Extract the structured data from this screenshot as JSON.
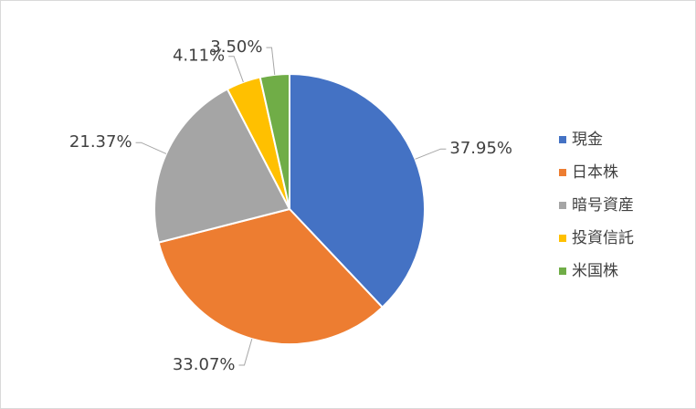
{
  "chart_data": {
    "type": "pie",
    "categories": [
      "現金",
      "日本株",
      "暗号資産",
      "投資信託",
      "米国株"
    ],
    "values": [
      37.95,
      33.07,
      21.37,
      4.11,
      3.5
    ],
    "value_labels": [
      "37.95%",
      "33.07%",
      "21.37%",
      "4.11%",
      "3.50%"
    ],
    "colors": [
      "#4472c4",
      "#ed7d31",
      "#a5a5a5",
      "#ffc000",
      "#70ad47"
    ],
    "legend": "right"
  }
}
